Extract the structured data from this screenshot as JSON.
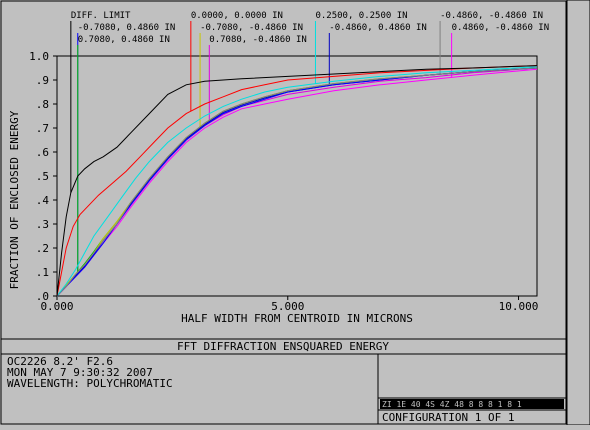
{
  "report": {
    "title": "FFT DIFFRACTION ENSQUARED ENERGY",
    "info_lines": [
      "OC2226 8.2' F2.6",
      "MON MAY 7 9:30:32 2007",
      "WAVELENGTH: POLYCHROMATIC"
    ],
    "configuration": "CONFIGURATION  1 OF 1",
    "footer_strip": "ZI 1E 40 4S 4Z 48 8 8 8 1 8 1"
  },
  "chart_data": {
    "type": "line",
    "title": "FFT DIFFRACTION ENSQUARED ENERGY",
    "xlabel": "HALF WIDTH FROM CENTROID IN MICRONS",
    "ylabel": "FRACTION OF ENCLOSED ENERGY",
    "xlim": [
      0,
      10.4
    ],
    "ylim": [
      0,
      1.0
    ],
    "x_ticks": [
      0,
      5,
      10
    ],
    "x_tick_labels": [
      "0.000",
      "5.000",
      "10.000"
    ],
    "y_ticks": [
      0,
      0.1,
      0.2,
      0.3,
      0.4,
      0.5,
      0.6,
      0.7,
      0.8,
      0.9,
      1.0
    ],
    "y_tick_labels": [
      ".0",
      ".1",
      ".2",
      ".3",
      ".4",
      ".5",
      ".6",
      ".7",
      ".8",
      ".9",
      "1.0"
    ],
    "grid": false,
    "series": [
      {
        "name": "DIFF. LIMIT",
        "color": "#000000",
        "label_row": 0,
        "label_x": 0.3,
        "x": [
          0,
          0.1,
          0.2,
          0.3,
          0.45,
          0.6,
          0.8,
          1.0,
          1.3,
          1.6,
          2.0,
          2.4,
          2.8,
          3.2,
          3.6,
          4.0,
          5.0,
          6.0,
          7.0,
          8.0,
          9.0,
          10.4
        ],
        "y": [
          0,
          0.18,
          0.33,
          0.43,
          0.5,
          0.53,
          0.56,
          0.58,
          0.62,
          0.68,
          0.76,
          0.84,
          0.88,
          0.895,
          0.9,
          0.905,
          0.915,
          0.925,
          0.935,
          0.945,
          0.95,
          0.96
        ]
      },
      {
        "name": "0.0000, 0.0000 IN",
        "color": "#ff0000",
        "label_row": 0,
        "label_x": 2.9,
        "x": [
          0,
          0.1,
          0.2,
          0.35,
          0.5,
          0.7,
          0.9,
          1.2,
          1.5,
          1.8,
          2.1,
          2.4,
          2.8,
          3.2,
          3.6,
          4.0,
          4.5,
          5.0,
          6.0,
          7.0,
          8.0,
          9.0,
          10.4
        ],
        "y": [
          0,
          0.1,
          0.2,
          0.29,
          0.34,
          0.38,
          0.42,
          0.47,
          0.52,
          0.58,
          0.64,
          0.7,
          0.76,
          0.8,
          0.83,
          0.86,
          0.88,
          0.9,
          0.915,
          0.93,
          0.94,
          0.95,
          0.96
        ]
      },
      {
        "name": "0.2500, 0.2500 IN",
        "color": "#00e0e0",
        "label_row": 0,
        "label_x": 5.6,
        "x": [
          0,
          0.2,
          0.4,
          0.6,
          0.8,
          1.1,
          1.4,
          1.7,
          2.0,
          2.4,
          2.8,
          3.2,
          3.6,
          4.0,
          4.5,
          5.0,
          6.0,
          7.0,
          8.0,
          9.0,
          10.4
        ],
        "y": [
          0,
          0.05,
          0.11,
          0.18,
          0.25,
          0.33,
          0.41,
          0.49,
          0.56,
          0.64,
          0.7,
          0.75,
          0.79,
          0.82,
          0.85,
          0.87,
          0.895,
          0.915,
          0.93,
          0.94,
          0.955
        ]
      },
      {
        "name": "-0.4860, -0.4860 IN",
        "color": "#808080",
        "label_row": 0,
        "label_x": 8.3,
        "x": [
          0,
          0.2,
          0.4,
          0.6,
          0.8,
          1.0,
          1.3,
          1.6,
          2.0,
          2.4,
          2.8,
          3.2,
          3.6,
          4.0,
          4.5,
          5.0,
          6.0,
          7.0,
          8.0,
          9.0,
          10.4
        ],
        "y": [
          0,
          0.04,
          0.09,
          0.13,
          0.18,
          0.23,
          0.3,
          0.39,
          0.49,
          0.58,
          0.66,
          0.72,
          0.77,
          0.8,
          0.83,
          0.855,
          0.885,
          0.905,
          0.92,
          0.935,
          0.95
        ]
      },
      {
        "name": "-0.7080, 0.4860 IN",
        "color": "#0000ff",
        "label_row": 1,
        "label_x": 0.45,
        "x": [
          0,
          0.2,
          0.4,
          0.6,
          0.8,
          1.0,
          1.3,
          1.6,
          2.0,
          2.4,
          2.8,
          3.2,
          3.6,
          4.0,
          4.5,
          5.0,
          6.0,
          7.0,
          8.0,
          9.0,
          10.4
        ],
        "y": [
          0,
          0.04,
          0.08,
          0.12,
          0.17,
          0.22,
          0.3,
          0.38,
          0.48,
          0.57,
          0.65,
          0.71,
          0.76,
          0.79,
          0.82,
          0.85,
          0.88,
          0.9,
          0.92,
          0.935,
          0.95
        ]
      },
      {
        "name": "-0.7080, -0.4860 IN",
        "color": "#c8c800",
        "label_row": 1,
        "label_x": 3.1,
        "x": [
          0,
          0.2,
          0.4,
          0.6,
          0.8,
          1.0,
          1.3,
          1.6,
          2.0,
          2.4,
          2.8,
          3.2,
          3.6,
          4.0,
          4.5,
          5.0,
          6.0,
          7.0,
          8.0,
          9.0,
          10.4
        ],
        "y": [
          0,
          0.045,
          0.09,
          0.13,
          0.18,
          0.24,
          0.31,
          0.39,
          0.49,
          0.58,
          0.66,
          0.72,
          0.77,
          0.8,
          0.83,
          0.855,
          0.885,
          0.905,
          0.92,
          0.935,
          0.95
        ]
      },
      {
        "name": "-0.4860, 0.4860 IN",
        "color": "#0000c0",
        "label_row": 1,
        "label_x": 5.9,
        "x": [
          0,
          0.2,
          0.4,
          0.6,
          0.8,
          1.0,
          1.3,
          1.6,
          2.0,
          2.4,
          2.8,
          3.2,
          3.6,
          4.0,
          4.5,
          5.0,
          6.0,
          7.0,
          8.0,
          9.0,
          10.4
        ],
        "y": [
          0,
          0.04,
          0.085,
          0.125,
          0.175,
          0.23,
          0.3,
          0.385,
          0.485,
          0.575,
          0.655,
          0.715,
          0.765,
          0.795,
          0.825,
          0.85,
          0.88,
          0.9,
          0.92,
          0.935,
          0.95
        ]
      },
      {
        "name": "0.4860, -0.4860 IN",
        "color": "#ff00ff",
        "label_row": 1,
        "label_x": 8.55,
        "x": [
          0,
          0.2,
          0.4,
          0.6,
          0.8,
          1.0,
          1.3,
          1.6,
          2.0,
          2.4,
          2.8,
          3.2,
          3.6,
          4.0,
          4.5,
          5.0,
          6.0,
          7.0,
          8.0,
          9.0,
          10.4
        ],
        "y": [
          0,
          0.04,
          0.08,
          0.12,
          0.17,
          0.22,
          0.29,
          0.37,
          0.47,
          0.56,
          0.64,
          0.7,
          0.745,
          0.78,
          0.8,
          0.82,
          0.855,
          0.88,
          0.9,
          0.92,
          0.945
        ]
      },
      {
        "name": "0.7080, 0.4860 IN",
        "color": "#00c000",
        "label_row": 2,
        "label_x": 0.45,
        "x": [
          0,
          0.2,
          0.4,
          0.6,
          0.8,
          1.0,
          1.3,
          1.6,
          2.0,
          2.4,
          2.8,
          3.2,
          3.6,
          4.0,
          4.5,
          5.0,
          6.0,
          7.0,
          8.0,
          9.0,
          10.4
        ],
        "y": [
          0,
          0.045,
          0.09,
          0.135,
          0.185,
          0.24,
          0.31,
          0.39,
          0.49,
          0.58,
          0.66,
          0.72,
          0.77,
          0.8,
          0.83,
          0.855,
          0.885,
          0.905,
          0.92,
          0.935,
          0.95
        ]
      },
      {
        "name": "0.7080, -0.4860 IN",
        "color": "#e000e0",
        "label_row": 2,
        "label_x": 3.3,
        "x": [
          0,
          0.2,
          0.4,
          0.6,
          0.8,
          1.0,
          1.3,
          1.6,
          2.0,
          2.4,
          2.8,
          3.2,
          3.6,
          4.0,
          4.5,
          5.0,
          6.0,
          7.0,
          8.0,
          9.0,
          10.4
        ],
        "y": [
          0,
          0.04,
          0.085,
          0.125,
          0.175,
          0.23,
          0.3,
          0.38,
          0.48,
          0.57,
          0.65,
          0.71,
          0.755,
          0.79,
          0.815,
          0.84,
          0.87,
          0.895,
          0.91,
          0.93,
          0.95
        ]
      }
    ]
  }
}
